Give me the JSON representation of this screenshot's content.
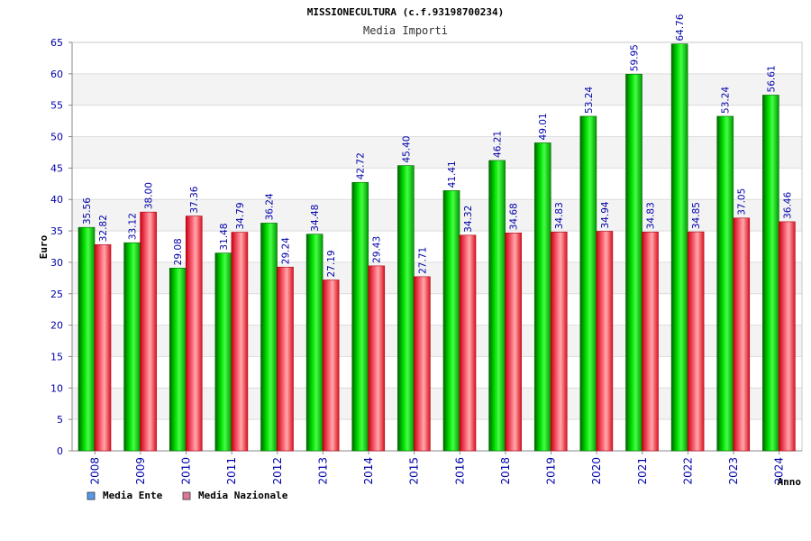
{
  "chart_data": {
    "type": "bar",
    "title": "MISSIONECULTURA (c.f.93198700234)",
    "subtitle": "Media Importi",
    "xlabel": "Anno",
    "ylabel": "Euro",
    "ylim": [
      0,
      65
    ],
    "yticks": [
      0,
      5,
      10,
      15,
      20,
      25,
      30,
      35,
      40,
      45,
      50,
      55,
      60,
      65
    ],
    "grid": true,
    "legend_position": "bottom-left",
    "categories": [
      "2008",
      "2009",
      "2010",
      "2011",
      "2012",
      "2013",
      "2014",
      "2015",
      "2016",
      "2018",
      "2019",
      "2020",
      "2021",
      "2022",
      "2023",
      "2024"
    ],
    "series": [
      {
        "name": "Media Ente",
        "color": "#00bb00",
        "legend_color": "#5599ee",
        "values": [
          35.56,
          33.12,
          29.08,
          31.48,
          36.24,
          34.48,
          42.72,
          45.4,
          41.41,
          46.21,
          49.01,
          53.24,
          59.95,
          64.76,
          53.24,
          56.61
        ],
        "labels": [
          "35.56",
          "33.12",
          "29.08",
          "31.48",
          "36.24",
          "34.48",
          "42.72",
          "45.40",
          "41.41",
          "46.21",
          "49.01",
          "53.24",
          "59.95",
          "64.76",
          "53.24",
          "56.61"
        ]
      },
      {
        "name": "Media Nazionale",
        "color": "#ee2233",
        "legend_color": "#dd7799",
        "values": [
          32.82,
          38.0,
          37.36,
          34.79,
          29.24,
          27.19,
          29.43,
          27.71,
          34.32,
          34.68,
          34.83,
          34.94,
          34.83,
          34.85,
          37.05,
          36.46
        ],
        "labels": [
          "32.82",
          "38.00",
          "37.36",
          "34.79",
          "29.24",
          "27.19",
          "29.43",
          "27.71",
          "34.32",
          "34.68",
          "34.83",
          "34.94",
          "34.83",
          "34.85",
          "37.05",
          "36.46"
        ]
      }
    ]
  }
}
